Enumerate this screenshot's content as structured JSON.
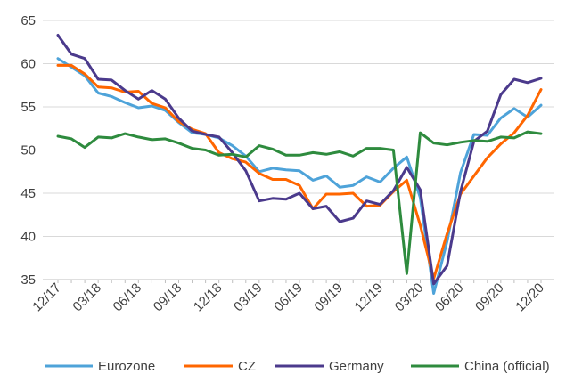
{
  "chart_data": {
    "type": "line",
    "ylim": [
      35,
      65
    ],
    "yticks": [
      35,
      40,
      45,
      50,
      55,
      60,
      65
    ],
    "x": [
      "12/17",
      "01/18",
      "02/18",
      "03/18",
      "04/18",
      "05/18",
      "06/18",
      "07/18",
      "08/18",
      "09/18",
      "10/18",
      "11/18",
      "12/18",
      "01/19",
      "02/19",
      "03/19",
      "04/19",
      "05/19",
      "06/19",
      "07/19",
      "08/19",
      "09/19",
      "10/19",
      "11/19",
      "12/19",
      "01/20",
      "02/20",
      "03/20",
      "04/20",
      "05/20",
      "06/20",
      "07/20",
      "08/20",
      "09/20",
      "10/20",
      "11/20",
      "12/20"
    ],
    "xtick_labels": [
      "12/17",
      "03/18",
      "06/18",
      "09/18",
      "12/18",
      "03/19",
      "06/19",
      "09/19",
      "12/19",
      "03/20",
      "06/20",
      "09/20",
      "12/20"
    ],
    "grid": "horizontal",
    "legend": "bottom",
    "series": [
      {
        "name": "Eurozone",
        "color": "#4ea3d9",
        "values": [
          60.6,
          59.6,
          58.6,
          56.6,
          56.2,
          55.5,
          54.9,
          55.1,
          54.6,
          53.2,
          52.0,
          51.8,
          51.4,
          50.5,
          49.3,
          47.5,
          47.9,
          47.7,
          47.6,
          46.5,
          47.0,
          45.7,
          45.9,
          46.9,
          46.3,
          47.9,
          49.2,
          44.5,
          33.4,
          39.4,
          47.4,
          51.8,
          51.7,
          53.7,
          54.8,
          53.8,
          55.2
        ]
      },
      {
        "name": "CZ",
        "color": "#ff6600",
        "values": [
          59.8,
          59.8,
          58.8,
          57.3,
          57.2,
          56.7,
          56.8,
          55.4,
          54.9,
          53.3,
          52.4,
          51.9,
          49.7,
          49.0,
          48.6,
          47.3,
          46.6,
          46.6,
          45.9,
          43.2,
          44.9,
          44.9,
          45.0,
          43.5,
          43.6,
          45.2,
          46.5,
          41.3,
          35.1,
          40.3,
          44.9,
          47.0,
          49.1,
          50.7,
          52.0,
          54.0,
          57.0
        ]
      },
      {
        "name": "Germany",
        "color": "#4b3a8c",
        "values": [
          63.3,
          61.1,
          60.6,
          58.2,
          58.1,
          56.9,
          55.9,
          56.9,
          55.9,
          53.7,
          52.2,
          51.8,
          51.5,
          49.7,
          47.6,
          44.1,
          44.4,
          44.3,
          45.0,
          43.2,
          43.5,
          41.7,
          42.1,
          44.1,
          43.7,
          45.3,
          48.0,
          45.4,
          34.5,
          36.6,
          45.2,
          51.0,
          52.2,
          56.4,
          58.2,
          57.8,
          58.3
        ]
      },
      {
        "name": "China (official)",
        "color": "#2e8b3e",
        "values": [
          51.6,
          51.3,
          50.3,
          51.5,
          51.4,
          51.9,
          51.5,
          51.2,
          51.3,
          50.8,
          50.2,
          50.0,
          49.4,
          49.5,
          49.2,
          50.5,
          50.1,
          49.4,
          49.4,
          49.7,
          49.5,
          49.8,
          49.3,
          50.2,
          50.2,
          50.0,
          35.7,
          52.0,
          50.8,
          50.6,
          50.9,
          51.1,
          51.0,
          51.5,
          51.4,
          52.1,
          51.9
        ]
      }
    ]
  }
}
